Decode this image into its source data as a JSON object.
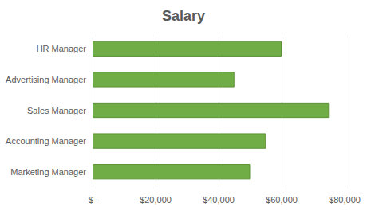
{
  "chart_data": {
    "type": "bar",
    "title": "Salary",
    "orientation": "horizontal",
    "categories": [
      "Marketing Manager",
      "Accounting Manager",
      "Sales Manager",
      "Advertising Manager",
      "HR Manager"
    ],
    "values": [
      50000,
      55000,
      75000,
      45000,
      60000
    ],
    "color": "#70ad47",
    "xlim": [
      0,
      80000
    ],
    "xticks": [
      {
        "value": 0,
        "label": "$-"
      },
      {
        "value": 20000,
        "label": "$20,000"
      },
      {
        "value": 40000,
        "label": "$40,000"
      },
      {
        "value": 60000,
        "label": "$60,000"
      },
      {
        "value": 80000,
        "label": "$80,000"
      }
    ],
    "grid": true
  }
}
